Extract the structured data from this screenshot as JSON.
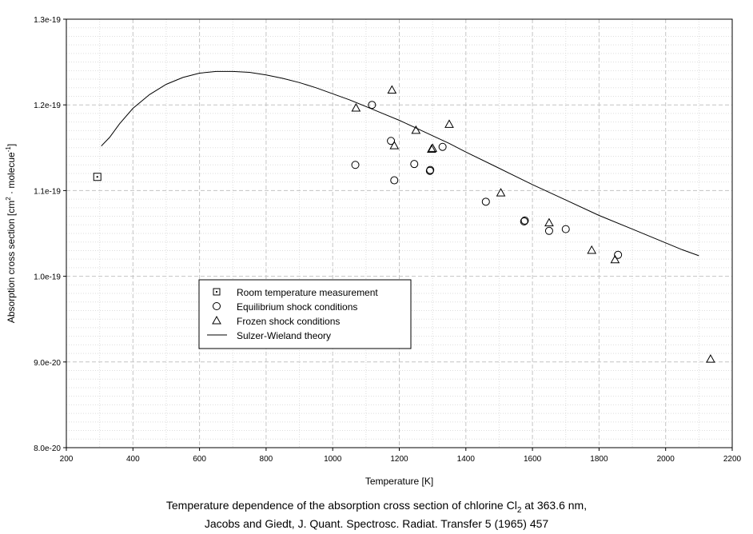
{
  "chart_data": {
    "type": "scatter",
    "title": "",
    "xlabel": "Temperature [K]",
    "ylabel_parts": [
      "Absorption cross section [cm",
      "2",
      " · molecue",
      "-1",
      "]"
    ],
    "xlim": [
      200,
      2200
    ],
    "ylim": [
      8e-20,
      1.3e-19
    ],
    "x_ticks": [
      200,
      400,
      600,
      800,
      1000,
      1200,
      1400,
      1600,
      1800,
      2000,
      2200
    ],
    "y_ticks": [
      {
        "value": 8e-20,
        "label": "8.0e-20"
      },
      {
        "value": 9e-20,
        "label": "9.0e-20"
      },
      {
        "value": 1e-19,
        "label": "1.0e-19"
      },
      {
        "value": 1.1e-19,
        "label": "1.1e-19"
      },
      {
        "value": 1.2e-19,
        "label": "1.2e-19"
      },
      {
        "value": 1.3e-19,
        "label": "1.3e-19"
      }
    ],
    "grid": true,
    "legend_position": "lower-left",
    "series": [
      {
        "name": "Room temperature measurement",
        "marker": "dotted-square",
        "points": [
          [
            293,
            1.116e-19
          ]
        ]
      },
      {
        "name": "Equilibrium shock conditions",
        "marker": "circle",
        "points": [
          [
            1068,
            1.13e-19
          ],
          [
            1118,
            1.2e-19
          ],
          [
            1175,
            1.158e-19
          ],
          [
            1185,
            1.112e-19
          ],
          [
            1245,
            1.131e-19
          ],
          [
            1292,
            1.123e-19
          ],
          [
            1293,
            1.124e-19
          ],
          [
            1330,
            1.151e-19
          ],
          [
            1460,
            1.087e-19
          ],
          [
            1575,
            1.064e-19
          ],
          [
            1577,
            1.065e-19
          ],
          [
            1650,
            1.053e-19
          ],
          [
            1700,
            1.055e-19
          ],
          [
            1857,
            1.025e-19
          ]
        ]
      },
      {
        "name": "Frozen shock conditions",
        "marker": "triangle",
        "points": [
          [
            1070,
            1.196e-19
          ],
          [
            1178,
            1.217e-19
          ],
          [
            1185,
            1.152e-19
          ],
          [
            1250,
            1.17e-19
          ],
          [
            1297,
            1.148e-19
          ],
          [
            1300,
            1.149e-19
          ],
          [
            1350,
            1.177e-19
          ],
          [
            1505,
            1.097e-19
          ],
          [
            1650,
            1.062e-19
          ],
          [
            1778,
            1.03e-19
          ],
          [
            1848,
            1.019e-19
          ],
          [
            2135,
            9.03e-20
          ]
        ]
      },
      {
        "name": "Sulzer-Wieland theory",
        "marker": "line",
        "points": [
          [
            305,
            1.152e-19
          ],
          [
            330,
            1.162e-19
          ],
          [
            360,
            1.178e-19
          ],
          [
            400,
            1.196e-19
          ],
          [
            450,
            1.212e-19
          ],
          [
            500,
            1.224e-19
          ],
          [
            550,
            1.232e-19
          ],
          [
            600,
            1.237e-19
          ],
          [
            650,
            1.239e-19
          ],
          [
            700,
            1.239e-19
          ],
          [
            750,
            1.238e-19
          ],
          [
            800,
            1.235e-19
          ],
          [
            850,
            1.231e-19
          ],
          [
            900,
            1.226e-19
          ],
          [
            950,
            1.22e-19
          ],
          [
            1000,
            1.213e-19
          ],
          [
            1050,
            1.206e-19
          ],
          [
            1100,
            1.198e-19
          ],
          [
            1150,
            1.19e-19
          ],
          [
            1200,
            1.182e-19
          ],
          [
            1250,
            1.173e-19
          ],
          [
            1300,
            1.164e-19
          ],
          [
            1350,
            1.155e-19
          ],
          [
            1400,
            1.145e-19
          ],
          [
            1500,
            1.126e-19
          ],
          [
            1600,
            1.107e-19
          ],
          [
            1700,
            1.089e-19
          ],
          [
            1800,
            1.071e-19
          ],
          [
            1900,
            1.055e-19
          ],
          [
            2000,
            1.039e-19
          ],
          [
            2050,
            1.031e-19
          ],
          [
            2100,
            1.024e-19
          ]
        ]
      }
    ]
  },
  "caption": {
    "line1_before": "Temperature dependence of the absorption cross section of chlorine Cl",
    "line1_sub": "2",
    "line1_after": " at 363.6 nm,",
    "line2": "Jacobs and Giedt, J. Quant. Spectrosc. Radiat. Transfer 5 (1965) 457"
  }
}
